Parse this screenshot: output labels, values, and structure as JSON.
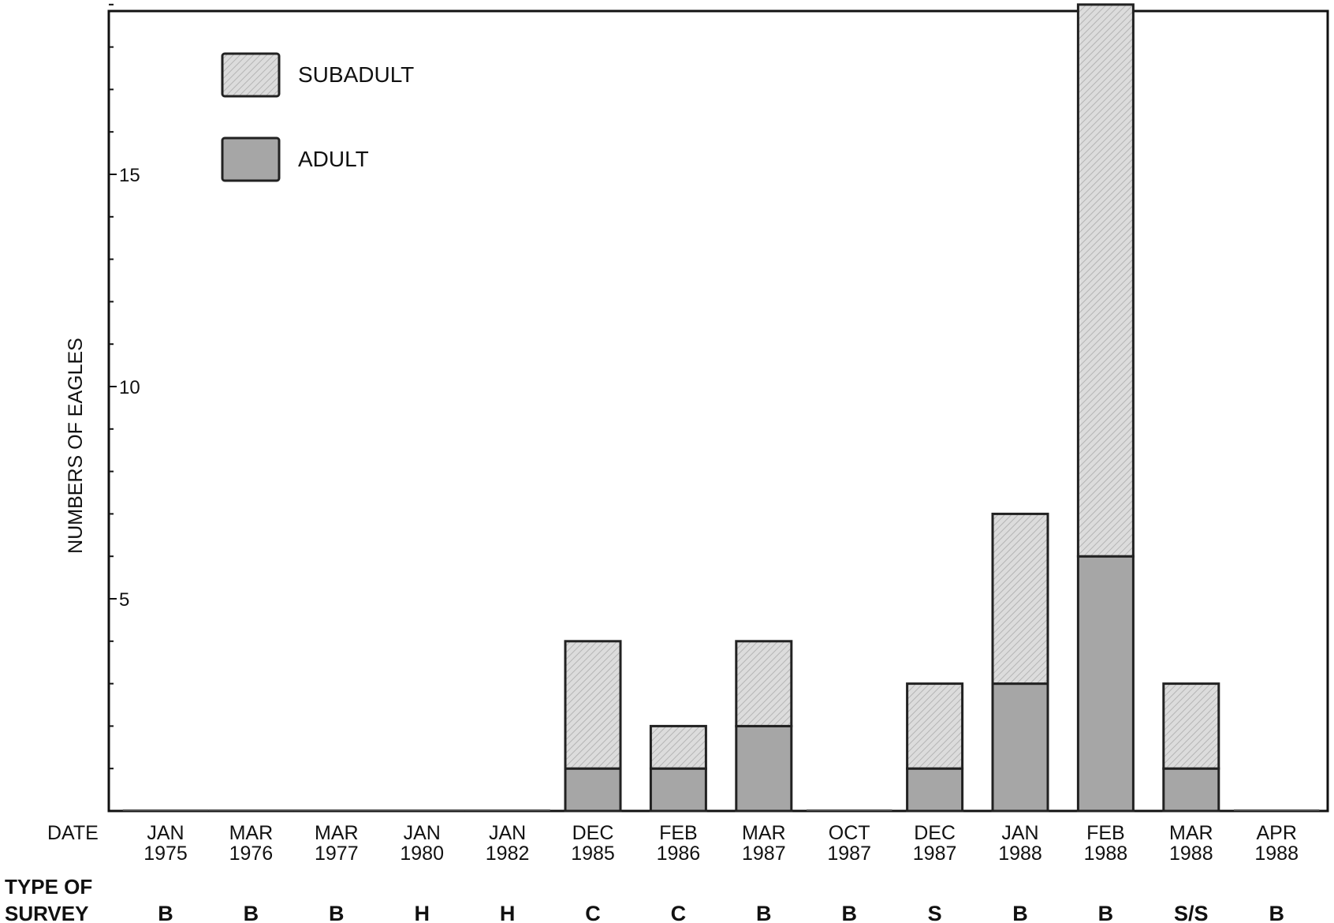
{
  "chart_data": {
    "type": "bar",
    "stacked": true,
    "title": "",
    "ylabel": "NUMBERS OF EAGLES",
    "xlabel": "",
    "ylim": [
      0,
      19
    ],
    "yticks_labeled": [
      5,
      10,
      15
    ],
    "yticks_minor_step": 1,
    "grid": false,
    "legend_position": "top-left",
    "date_row_label": "DATE",
    "survey_row_label": [
      "TYPE OF",
      "SURVEY"
    ],
    "categories": [
      [
        "JAN",
        "1975"
      ],
      [
        "MAR",
        "1976"
      ],
      [
        "MAR",
        "1977"
      ],
      [
        "JAN",
        "1980"
      ],
      [
        "JAN",
        "1982"
      ],
      [
        "DEC",
        "1985"
      ],
      [
        "FEB",
        "1986"
      ],
      [
        "MAR",
        "1987"
      ],
      [
        "OCT",
        "1987"
      ],
      [
        "DEC",
        "1987"
      ],
      [
        "JAN",
        "1988"
      ],
      [
        "FEB",
        "1988"
      ],
      [
        "MAR",
        "1988"
      ],
      [
        "APR",
        "1988"
      ]
    ],
    "survey_types": [
      "B",
      "B",
      "B",
      "H",
      "H",
      "C",
      "C",
      "B",
      "B",
      "S",
      "B",
      "B",
      "S/S",
      "B"
    ],
    "series": [
      {
        "name": "ADULT",
        "color": "#a6a6a6",
        "pattern": "solid",
        "values": [
          0,
          0,
          0,
          0,
          0,
          1,
          1,
          2,
          0,
          1,
          3,
          6,
          1,
          0
        ]
      },
      {
        "name": "SUBADULT",
        "color": "#dcdcdc",
        "pattern": "hatched",
        "values": [
          0,
          0,
          0,
          0,
          0,
          3,
          1,
          2,
          0,
          2,
          4,
          13,
          2,
          0
        ]
      }
    ],
    "legend_order": [
      "SUBADULT",
      "ADULT"
    ]
  }
}
